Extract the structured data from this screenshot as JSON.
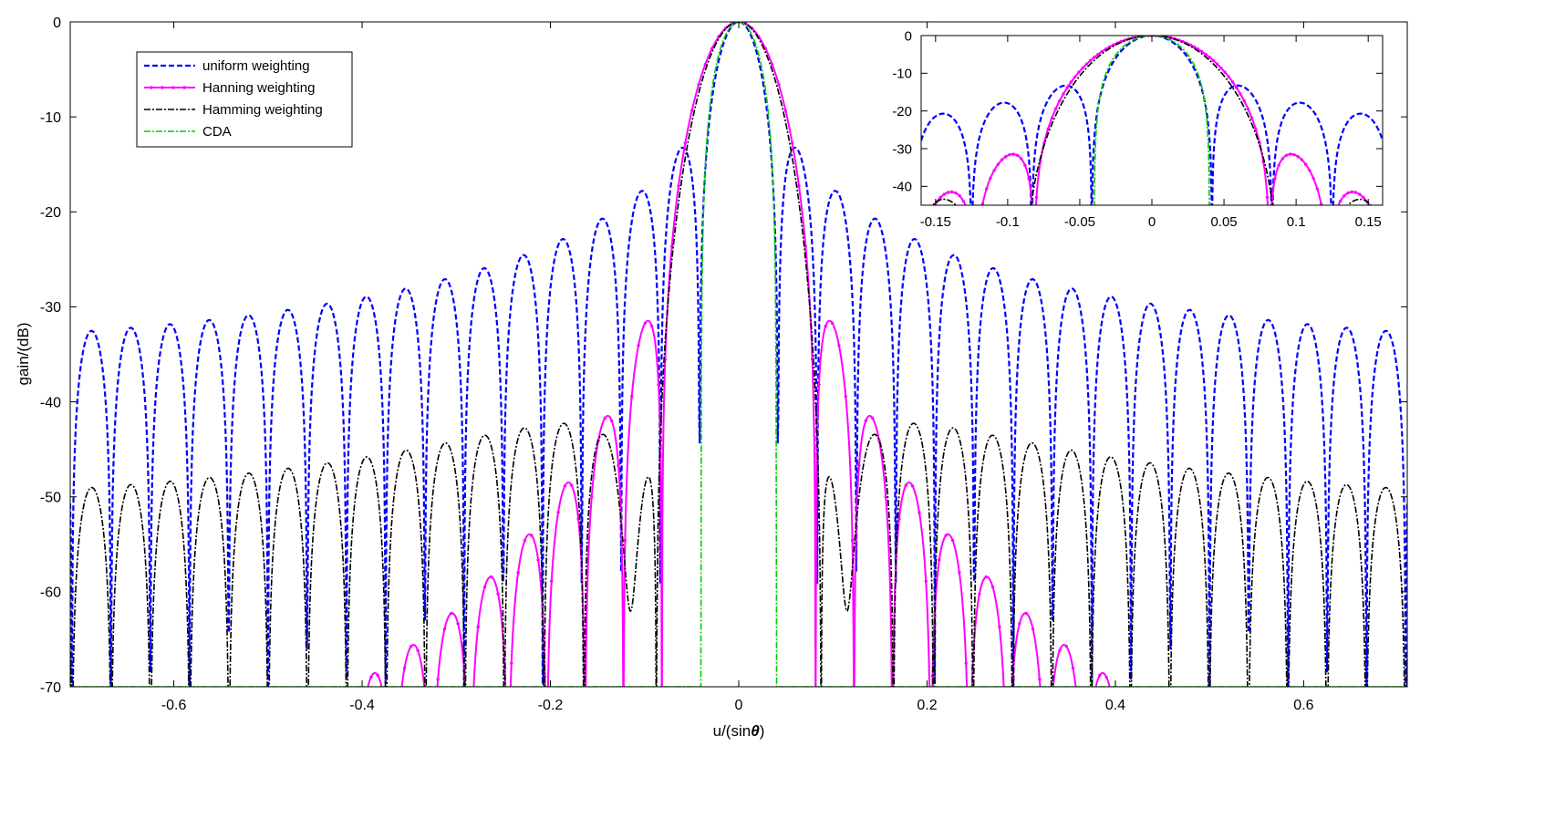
{
  "chart_data": [
    {
      "type": "line",
      "title": "",
      "xlabel_main": "u/(sin",
      "xlabel_theta": "θ",
      "xlabel_close": ")",
      "ylabel": "gain/(dB)",
      "xlim": [
        -0.71,
        0.71
      ],
      "ylim": [
        -70,
        0
      ],
      "xticks": [
        -0.6,
        -0.4,
        -0.2,
        0,
        0.2,
        0.4,
        0.6
      ],
      "xtick_labels": [
        "-0.6",
        "-0.4",
        "-0.2",
        "0",
        "0.2",
        "0.4",
        "0.6"
      ],
      "yticks": [
        0,
        -10,
        -20,
        -30,
        -40,
        -50,
        -60,
        -70
      ],
      "ytick_labels": [
        "0",
        "-10",
        "-20",
        "-30",
        "-40",
        "-50",
        "-60",
        "-70"
      ],
      "grid": false,
      "legend": {
        "placement": "top-left",
        "entries": [
          "uniform weighting",
          "Hanning weighting",
          "Hamming weighting",
          "CDA"
        ]
      },
      "series": [
        {
          "name": "uniform weighting",
          "color": "#0000ff",
          "style": "dashed",
          "model": "uniform",
          "N": 48,
          "floor": -70
        },
        {
          "name": "Hanning weighting",
          "color": "#ff00ff",
          "style": "solid-dots",
          "model": "hanning",
          "N": 48,
          "floor": -70
        },
        {
          "name": "Hamming weighting",
          "color": "#000000",
          "style": "dash-dot",
          "model": "hamming",
          "N": 48,
          "floor": -70
        },
        {
          "name": "CDA",
          "color": "#00cc00",
          "style": "dash-dot",
          "model": "cda",
          "N": 48,
          "floor": -70
        }
      ]
    },
    {
      "type": "line",
      "title": "",
      "xlim": [
        -0.16,
        0.16
      ],
      "ylim": [
        -45,
        0
      ],
      "xticks": [
        -0.15,
        -0.1,
        -0.05,
        0,
        0.05,
        0.1,
        0.15
      ],
      "xtick_labels": [
        "-0.15",
        "-0.1",
        "-0.05",
        "0",
        "0.05",
        "0.1",
        "0.15"
      ],
      "yticks": [
        0,
        -10,
        -20,
        -30,
        -40
      ],
      "ytick_labels": [
        "0",
        "-10",
        "-20",
        "-30",
        "-40"
      ],
      "grid": false,
      "placement": "inset-top-right"
    }
  ]
}
